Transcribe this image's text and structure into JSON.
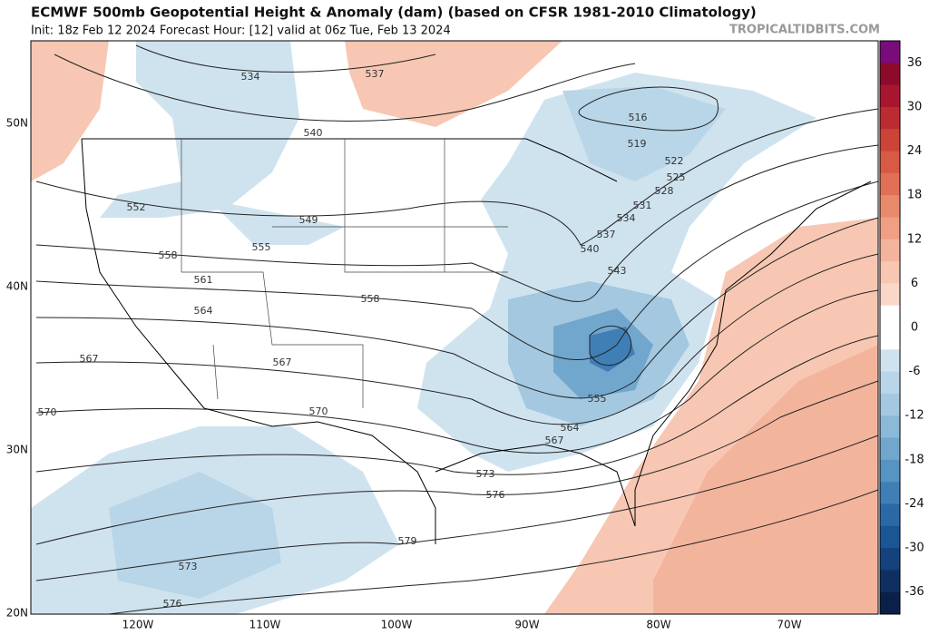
{
  "header": {
    "title": "ECMWF 500mb Geopotential Height & Anomaly (dam) (based on CFSR 1981-2010 Climatology)",
    "subtitle": "Init: 18z Feb 12 2024   Forecast Hour: [12]   valid at 06z Tue, Feb 13 2024",
    "credit": "TROPICALTIDBITS.COM"
  },
  "map": {
    "lat_labels": [
      "50N",
      "40N",
      "30N",
      "20N"
    ],
    "lon_labels": [
      "120W",
      "110W",
      "100W",
      "90W",
      "80W",
      "70W"
    ],
    "contour_labels": [
      "534",
      "537",
      "540",
      "552",
      "549",
      "555",
      "558",
      "561",
      "558",
      "564",
      "567",
      "567",
      "570",
      "570",
      "573",
      "576",
      "579",
      "573",
      "576",
      "516",
      "519",
      "522",
      "525",
      "528",
      "531",
      "534",
      "537",
      "540",
      "543",
      "555",
      "564",
      "567"
    ]
  },
  "colorbar": {
    "ticks": [
      "36",
      "30",
      "24",
      "18",
      "12",
      "6",
      "0",
      "-6",
      "-12",
      "-18",
      "-24",
      "-30",
      "-36"
    ],
    "colors": [
      "#7a0b7a",
      "#8e0a2a",
      "#a8152f",
      "#bd2b32",
      "#cc4438",
      "#d75a44",
      "#e07156",
      "#e88a6c",
      "#ee9f84",
      "#f3b49c",
      "#f7c7b3",
      "#fad8c9",
      "#ffffff",
      "#ffffff",
      "#cfe3ef",
      "#b9d6e8",
      "#a3c8e0",
      "#8cb9d8",
      "#72a7cd",
      "#5894c2",
      "#3f7fb6",
      "#2a69a6",
      "#1c5594",
      "#15417c",
      "#0f2f63",
      "#0b2048"
    ]
  }
}
